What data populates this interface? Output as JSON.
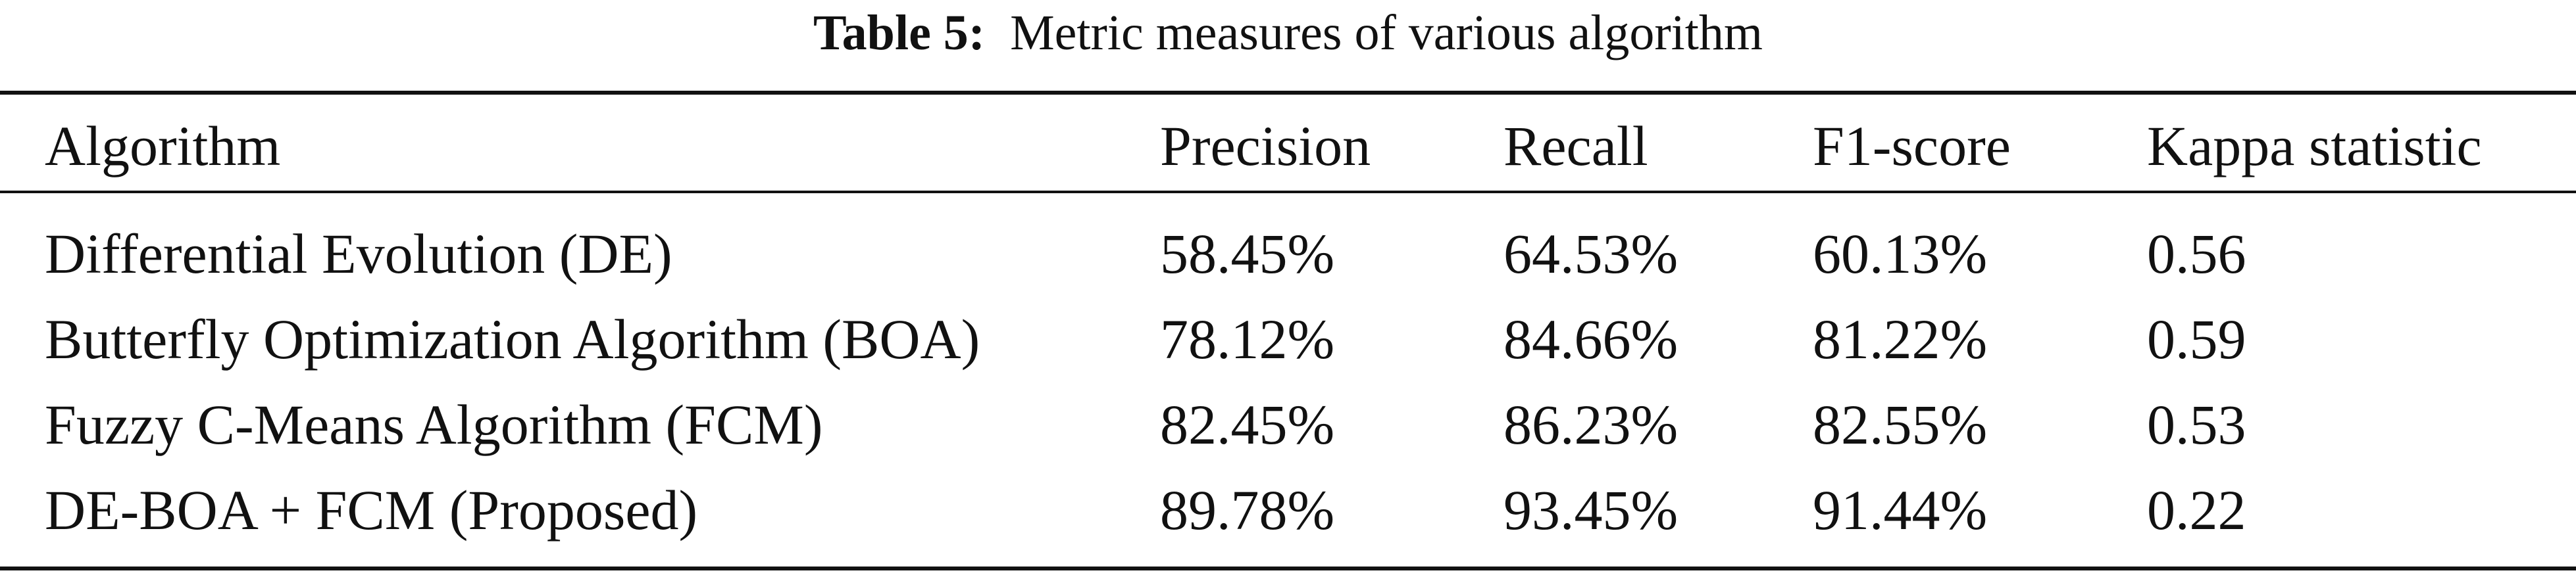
{
  "caption": {
    "label": "Table 5:",
    "text": "Metric measures of various algorithm"
  },
  "table": {
    "headers": [
      "Algorithm",
      "Precision",
      "Recall",
      "F1-score",
      "Kappa statistic"
    ],
    "rows": [
      [
        "Differential Evolution (DE)",
        "58.45%",
        "64.53%",
        "60.13%",
        "0.56"
      ],
      [
        "Butterfly Optimization Algorithm (BOA)",
        "78.12%",
        "84.66%",
        "81.22%",
        "0.59"
      ],
      [
        "Fuzzy C-Means Algorithm (FCM)",
        "82.45%",
        "86.23%",
        "82.55%",
        "0.53"
      ],
      [
        "DE-BOA + FCM (Proposed)",
        "89.78%",
        "93.45%",
        "91.44%",
        "0.22"
      ]
    ]
  }
}
